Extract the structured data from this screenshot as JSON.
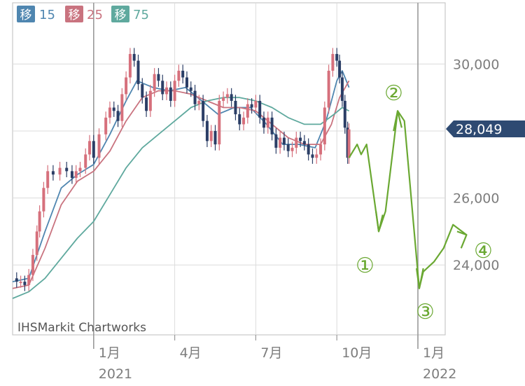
{
  "legend": [
    {
      "label": "移",
      "value": "15",
      "color": "#4f86b0"
    },
    {
      "label": "移",
      "value": "25",
      "color": "#c9737f"
    },
    {
      "label": "移",
      "value": "75",
      "color": "#5fa99e"
    }
  ],
  "credit": "IHSMarkit Chartworks",
  "last_price_badge": {
    "text": "28,049",
    "value": 28049,
    "color": "#2e4a72"
  },
  "wave_labels": [
    "①",
    "②",
    "③",
    "④"
  ],
  "chart_data": {
    "type": "candlestick",
    "title": "",
    "xlabel": "",
    "ylabel": "",
    "ylim": [
      22000,
      31000
    ],
    "y_ticks": [
      {
        "value": 30000,
        "label": "30,000"
      },
      {
        "value": 26000,
        "label": "26,000"
      },
      {
        "value": 24000,
        "label": "24,000"
      }
    ],
    "y_grid": [
      24000,
      26000,
      28000,
      30000
    ],
    "x_ticks": [
      {
        "label": "1月",
        "sublabel": "2021",
        "month_index": 3,
        "year_divider": true
      },
      {
        "label": "4月",
        "sublabel": "",
        "month_index": 6,
        "year_divider": false
      },
      {
        "label": "7月",
        "sublabel": "",
        "month_index": 9,
        "year_divider": false
      },
      {
        "label": "10月",
        "sublabel": "",
        "month_index": 12,
        "year_divider": false
      },
      {
        "label": "1月",
        "sublabel": "2022",
        "month_index": 15,
        "year_divider": true
      }
    ],
    "price_close_path": [
      [
        0,
        23600
      ],
      [
        0.15,
        23500
      ],
      [
        0.3,
        23500
      ],
      [
        0.45,
        23400
      ],
      [
        0.6,
        23700
      ],
      [
        0.75,
        24300
      ],
      [
        0.9,
        25000
      ],
      [
        1.0,
        25600
      ],
      [
        1.15,
        26300
      ],
      [
        1.3,
        26800
      ],
      [
        1.5,
        26700
      ],
      [
        1.75,
        26900
      ],
      [
        2.0,
        26800
      ],
      [
        2.2,
        26600
      ],
      [
        2.35,
        26800
      ],
      [
        2.5,
        26900
      ],
      [
        2.7,
        27300
      ],
      [
        2.85,
        27700
      ],
      [
        3.0,
        27200
      ],
      [
        3.2,
        27900
      ],
      [
        3.45,
        28400
      ],
      [
        3.6,
        28700
      ],
      [
        3.75,
        28600
      ],
      [
        3.9,
        28300
      ],
      [
        4.05,
        29100
      ],
      [
        4.2,
        29600
      ],
      [
        4.35,
        30300
      ],
      [
        4.5,
        30100
      ],
      [
        4.65,
        29400
      ],
      [
        4.8,
        29000
      ],
      [
        4.95,
        28600
      ],
      [
        5.1,
        29200
      ],
      [
        5.25,
        29700
      ],
      [
        5.4,
        29500
      ],
      [
        5.55,
        29100
      ],
      [
        5.7,
        29300
      ],
      [
        5.85,
        28900
      ],
      [
        6.0,
        29500
      ],
      [
        6.15,
        29800
      ],
      [
        6.3,
        29600
      ],
      [
        6.45,
        29300
      ],
      [
        6.6,
        29200
      ],
      [
        6.75,
        28800
      ],
      [
        6.9,
        28900
      ],
      [
        7.05,
        28300
      ],
      [
        7.2,
        27700
      ],
      [
        7.35,
        28000
      ],
      [
        7.5,
        27600
      ],
      [
        7.65,
        28900
      ],
      [
        7.8,
        29000
      ],
      [
        7.95,
        29100
      ],
      [
        8.1,
        28900
      ],
      [
        8.25,
        28500
      ],
      [
        8.4,
        28200
      ],
      [
        8.55,
        28400
      ],
      [
        8.7,
        28800
      ],
      [
        8.85,
        28700
      ],
      [
        9.0,
        28900
      ],
      [
        9.15,
        28400
      ],
      [
        9.3,
        28100
      ],
      [
        9.45,
        28400
      ],
      [
        9.6,
        27900
      ],
      [
        9.75,
        27500
      ],
      [
        9.9,
        27800
      ],
      [
        10.05,
        27600
      ],
      [
        10.2,
        27400
      ],
      [
        10.35,
        27500
      ],
      [
        10.5,
        27800
      ],
      [
        10.65,
        27700
      ],
      [
        10.8,
        27600
      ],
      [
        10.95,
        27300
      ],
      [
        11.1,
        27200
      ],
      [
        11.25,
        27300
      ],
      [
        11.4,
        27600
      ],
      [
        11.55,
        28700
      ],
      [
        11.7,
        29800
      ],
      [
        11.85,
        30300
      ],
      [
        12.0,
        30100
      ],
      [
        12.1,
        29600
      ],
      [
        12.2,
        28900
      ],
      [
        12.3,
        28100
      ],
      [
        12.4,
        27200
      ],
      [
        12.45,
        28049
      ]
    ],
    "series": [
      {
        "name": "移 15",
        "color": "#4f86b0",
        "points": [
          [
            0,
            23500
          ],
          [
            0.6,
            23600
          ],
          [
            1.2,
            25000
          ],
          [
            1.8,
            26300
          ],
          [
            2.4,
            26700
          ],
          [
            3.0,
            27000
          ],
          [
            3.6,
            27900
          ],
          [
            4.2,
            28900
          ],
          [
            4.6,
            29500
          ],
          [
            5.2,
            29300
          ],
          [
            5.8,
            29200
          ],
          [
            6.4,
            29300
          ],
          [
            7.0,
            28900
          ],
          [
            7.6,
            28500
          ],
          [
            8.2,
            28700
          ],
          [
            8.8,
            28700
          ],
          [
            9.4,
            28200
          ],
          [
            10.0,
            27600
          ],
          [
            10.6,
            27600
          ],
          [
            11.2,
            27500
          ],
          [
            11.6,
            28300
          ],
          [
            12.0,
            29500
          ],
          [
            12.2,
            29800
          ],
          [
            12.45,
            29300
          ]
        ]
      },
      {
        "name": "移 25",
        "color": "#c9737f",
        "points": [
          [
            0,
            23300
          ],
          [
            0.6,
            23400
          ],
          [
            1.2,
            24500
          ],
          [
            1.8,
            25800
          ],
          [
            2.4,
            26500
          ],
          [
            3.0,
            26800
          ],
          [
            3.6,
            27400
          ],
          [
            4.2,
            28300
          ],
          [
            4.8,
            29000
          ],
          [
            5.4,
            29200
          ],
          [
            6.0,
            29200
          ],
          [
            6.6,
            29100
          ],
          [
            7.2,
            28900
          ],
          [
            7.8,
            28700
          ],
          [
            8.4,
            28700
          ],
          [
            9.0,
            28600
          ],
          [
            9.6,
            28200
          ],
          [
            10.2,
            27800
          ],
          [
            10.8,
            27600
          ],
          [
            11.4,
            27600
          ],
          [
            11.8,
            28200
          ],
          [
            12.1,
            29000
          ],
          [
            12.45,
            29500
          ]
        ]
      },
      {
        "name": "移 75",
        "color": "#5fa99e",
        "points": [
          [
            0,
            23000
          ],
          [
            0.6,
            23200
          ],
          [
            1.2,
            23600
          ],
          [
            1.8,
            24200
          ],
          [
            2.4,
            24800
          ],
          [
            3.0,
            25300
          ],
          [
            3.6,
            26100
          ],
          [
            4.2,
            26900
          ],
          [
            4.8,
            27500
          ],
          [
            5.4,
            27900
          ],
          [
            6.0,
            28300
          ],
          [
            6.6,
            28700
          ],
          [
            7.2,
            28900
          ],
          [
            7.8,
            29000
          ],
          [
            8.4,
            29000
          ],
          [
            9.0,
            28900
          ],
          [
            9.6,
            28700
          ],
          [
            10.2,
            28400
          ],
          [
            10.8,
            28200
          ],
          [
            11.4,
            28200
          ],
          [
            11.9,
            28500
          ],
          [
            12.2,
            28700
          ],
          [
            12.45,
            28600
          ]
        ]
      }
    ],
    "forecast_path": [
      [
        12.45,
        27200
      ],
      [
        12.75,
        27600
      ],
      [
        12.9,
        27300
      ],
      [
        13.1,
        27600
      ],
      [
        13.55,
        25000
      ],
      [
        13.8,
        25600
      ],
      [
        14.25,
        28600
      ],
      [
        14.5,
        28300
      ],
      [
        15.05,
        23300
      ],
      [
        15.2,
        23800
      ],
      [
        15.6,
        24100
      ],
      [
        15.95,
        24500
      ],
      [
        16.3,
        25200
      ],
      [
        16.8,
        24900
      ]
    ]
  }
}
